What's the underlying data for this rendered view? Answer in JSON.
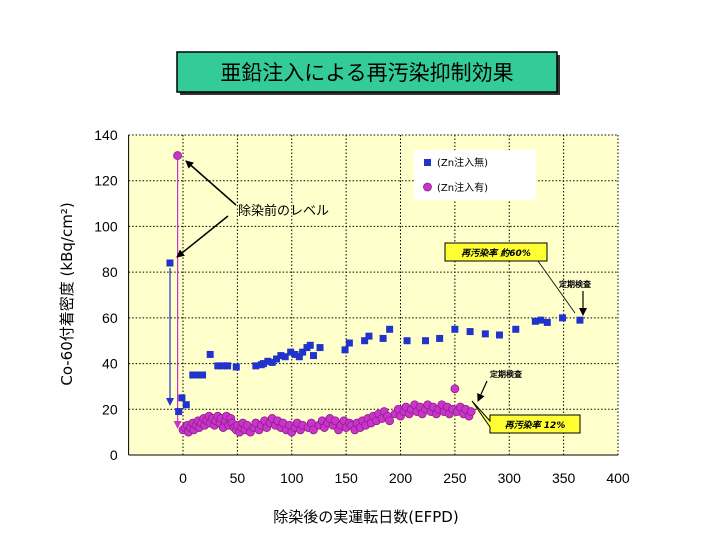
{
  "colors": {
    "title_box": "#33CC99",
    "plot_background": "#FFFFCC",
    "callout_fill": "#FFFF33"
  },
  "chart_data": {
    "type": "scatter",
    "title": "亜鉛注入による再汚染抑制効果",
    "xlabel": "除染後の実運転日数(EFPD)",
    "ylabel": "Co-60付着密度 (kBq/cm²)",
    "xlim": [
      -50,
      400
    ],
    "ylim": [
      0,
      140
    ],
    "xticks": [
      0,
      50,
      100,
      150,
      200,
      250,
      300,
      350,
      400
    ],
    "yticks": [
      0,
      20,
      40,
      60,
      80,
      100,
      120,
      140
    ],
    "grid": true,
    "legend_position": "top-right",
    "series": [
      {
        "name": "(Zn注入無)",
        "marker": "square",
        "color": "#2233CC",
        "points": [
          [
            -12,
            84
          ],
          [
            -4,
            19
          ],
          [
            -1,
            25
          ],
          [
            3,
            22
          ],
          [
            9,
            35
          ],
          [
            14,
            35
          ],
          [
            18,
            35
          ],
          [
            25,
            44
          ],
          [
            32,
            39
          ],
          [
            37,
            39
          ],
          [
            41,
            39
          ],
          [
            49,
            38.5
          ],
          [
            67,
            39
          ],
          [
            72,
            39.5
          ],
          [
            74,
            40
          ],
          [
            78,
            41
          ],
          [
            82,
            40.5
          ],
          [
            86,
            42
          ],
          [
            90,
            43.5
          ],
          [
            94,
            43
          ],
          [
            99,
            45
          ],
          [
            103,
            44
          ],
          [
            107,
            43
          ],
          [
            110,
            45
          ],
          [
            114,
            47
          ],
          [
            117,
            48
          ],
          [
            120,
            43.5
          ],
          [
            126,
            47
          ],
          [
            149,
            46
          ],
          [
            153,
            49
          ],
          [
            167,
            50
          ],
          [
            171,
            52
          ],
          [
            184,
            51
          ],
          [
            190,
            55
          ],
          [
            206,
            50
          ],
          [
            223,
            50
          ],
          [
            236,
            51
          ],
          [
            250,
            55
          ],
          [
            264,
            54
          ],
          [
            278,
            53
          ],
          [
            291,
            52.5
          ],
          [
            306,
            55
          ],
          [
            324,
            58.5
          ],
          [
            329,
            59
          ],
          [
            335,
            58
          ],
          [
            349,
            60
          ],
          [
            365,
            59
          ]
        ]
      },
      {
        "name": "(Zn注入有)",
        "marker": "circle",
        "color": "#CC33CC",
        "points": [
          [
            -5,
            131
          ],
          [
            0,
            11
          ],
          [
            2,
            12
          ],
          [
            4,
            13
          ],
          [
            5,
            10
          ],
          [
            7,
            12
          ],
          [
            9,
            14
          ],
          [
            10,
            11
          ],
          [
            12,
            13
          ],
          [
            14,
            15
          ],
          [
            15,
            12
          ],
          [
            17,
            14
          ],
          [
            19,
            16
          ],
          [
            20,
            13
          ],
          [
            22,
            15
          ],
          [
            24,
            17
          ],
          [
            25,
            14
          ],
          [
            27,
            16
          ],
          [
            29,
            13
          ],
          [
            30,
            15
          ],
          [
            32,
            17
          ],
          [
            34,
            14
          ],
          [
            35,
            16
          ],
          [
            37,
            12
          ],
          [
            39,
            15
          ],
          [
            40,
            17
          ],
          [
            42,
            13
          ],
          [
            44,
            16
          ],
          [
            45,
            14
          ],
          [
            47,
            12
          ],
          [
            49,
            11
          ],
          [
            50,
            13
          ],
          [
            52,
            10
          ],
          [
            54,
            12
          ],
          [
            55,
            14
          ],
          [
            57,
            11
          ],
          [
            59,
            13
          ],
          [
            62,
            10
          ],
          [
            65,
            12
          ],
          [
            67,
            14
          ],
          [
            70,
            11
          ],
          [
            72,
            13
          ],
          [
            75,
            15
          ],
          [
            77,
            12
          ],
          [
            80,
            14
          ],
          [
            82,
            16
          ],
          [
            85,
            13
          ],
          [
            87,
            15
          ],
          [
            90,
            12
          ],
          [
            92,
            14
          ],
          [
            95,
            11
          ],
          [
            98,
            13
          ],
          [
            100,
            10
          ],
          [
            103,
            12
          ],
          [
            105,
            14
          ],
          [
            108,
            11
          ],
          [
            110,
            13
          ],
          [
            115,
            12
          ],
          [
            118,
            14
          ],
          [
            120,
            11
          ],
          [
            125,
            13
          ],
          [
            128,
            15
          ],
          [
            130,
            12
          ],
          [
            133,
            14
          ],
          [
            135,
            16
          ],
          [
            138,
            13
          ],
          [
            140,
            15
          ],
          [
            143,
            11
          ],
          [
            145,
            13
          ],
          [
            148,
            15
          ],
          [
            150,
            12
          ],
          [
            153,
            14
          ],
          [
            155,
            13
          ],
          [
            158,
            11
          ],
          [
            160,
            14
          ],
          [
            163,
            12
          ],
          [
            165,
            15
          ],
          [
            168,
            13
          ],
          [
            170,
            16
          ],
          [
            173,
            14
          ],
          [
            175,
            17
          ],
          [
            178,
            15
          ],
          [
            180,
            18
          ],
          [
            183,
            16
          ],
          [
            185,
            19
          ],
          [
            188,
            17
          ],
          [
            190,
            15
          ],
          [
            195,
            18
          ],
          [
            198,
            20
          ],
          [
            200,
            17
          ],
          [
            203,
            19
          ],
          [
            205,
            21
          ],
          [
            208,
            18
          ],
          [
            210,
            20
          ],
          [
            213,
            22
          ],
          [
            215,
            19
          ],
          [
            218,
            21
          ],
          [
            220,
            18
          ],
          [
            223,
            20
          ],
          [
            225,
            22
          ],
          [
            228,
            19
          ],
          [
            230,
            21
          ],
          [
            233,
            18
          ],
          [
            235,
            20
          ],
          [
            238,
            22
          ],
          [
            240,
            19
          ],
          [
            243,
            21
          ],
          [
            245,
            18
          ],
          [
            248,
            20
          ],
          [
            250,
            29
          ],
          [
            252,
            19
          ],
          [
            255,
            21
          ],
          [
            258,
            18
          ],
          [
            260,
            20
          ],
          [
            263,
            17
          ],
          [
            265,
            19
          ]
        ]
      }
    ],
    "annotations": [
      {
        "text": "除染前のレベル"
      },
      {
        "text": "再汚染率 約60%"
      },
      {
        "text": "定期検査"
      },
      {
        "text": "定期検査"
      },
      {
        "text": "再汚染率 12%"
      }
    ]
  }
}
